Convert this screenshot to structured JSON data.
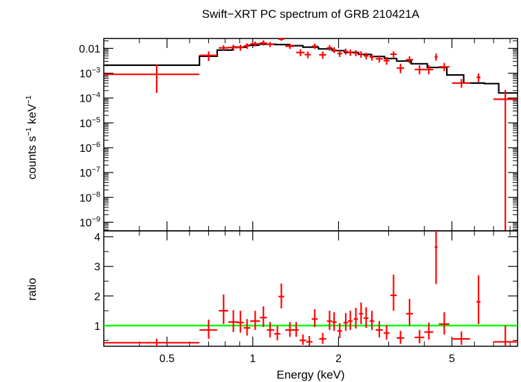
{
  "chart_data": {
    "type": "scatter",
    "title": "Swift−XRT PC spectrum of GRB 210421A",
    "xlabel": "Energy (keV)",
    "x_scale": "log",
    "xlim": [
      0.3,
      8.5
    ],
    "x_ticks": [
      {
        "v": 0.5,
        "label": "0.5"
      },
      {
        "v": 1,
        "label": "1"
      },
      {
        "v": 2,
        "label": "2"
      },
      {
        "v": 5,
        "label": "5"
      }
    ],
    "panels": [
      {
        "name": "spectrum",
        "ylabel_main": "counts s",
        "ylabel_sup1": "−1",
        "ylabel_mid": " keV",
        "ylabel_sup2": "−1",
        "y_scale": "log",
        "ylim": [
          4.5e-10,
          0.025
        ],
        "y_ticks": [
          {
            "v": 0.01,
            "base": "0.01",
            "exp": ""
          },
          {
            "v": 0.001,
            "base": "10",
            "exp": "−3"
          },
          {
            "v": 0.0001,
            "base": "10",
            "exp": "−4"
          },
          {
            "v": 1e-05,
            "base": "10",
            "exp": "−5"
          },
          {
            "v": 1e-06,
            "base": "10",
            "exp": "−6"
          },
          {
            "v": 1e-07,
            "base": "10",
            "exp": "−7"
          },
          {
            "v": 1e-08,
            "base": "10",
            "exp": "−8"
          },
          {
            "v": 1e-09,
            "base": "10",
            "exp": "−9"
          }
        ],
        "model": {
          "color": "#000000",
          "steps": [
            {
              "x0": 0.3,
              "x1": 0.65,
              "y": 0.0021
            },
            {
              "x0": 0.65,
              "x1": 0.75,
              "y": 0.0048
            },
            {
              "x0": 0.75,
              "x1": 0.85,
              "y": 0.0085
            },
            {
              "x0": 0.85,
              "x1": 0.95,
              "y": 0.0112
            },
            {
              "x0": 0.95,
              "x1": 1.05,
              "y": 0.0133
            },
            {
              "x0": 1.05,
              "x1": 1.2,
              "y": 0.0147
            },
            {
              "x0": 1.2,
              "x1": 1.35,
              "y": 0.0142
            },
            {
              "x0": 1.35,
              "x1": 1.5,
              "y": 0.0128
            },
            {
              "x0": 1.5,
              "x1": 1.7,
              "y": 0.0112
            },
            {
              "x0": 1.7,
              "x1": 1.9,
              "y": 0.0095
            },
            {
              "x0": 1.9,
              "x1": 2.1,
              "y": 0.0081
            },
            {
              "x0": 2.1,
              "x1": 2.35,
              "y": 0.0068
            },
            {
              "x0": 2.35,
              "x1": 2.6,
              "y": 0.0057
            },
            {
              "x0": 2.6,
              "x1": 2.9,
              "y": 0.0047
            },
            {
              "x0": 2.9,
              "x1": 3.2,
              "y": 0.0039
            },
            {
              "x0": 3.2,
              "x1": 3.6,
              "y": 0.0031
            },
            {
              "x0": 3.6,
              "x1": 4.1,
              "y": 0.0024
            },
            {
              "x0": 4.1,
              "x1": 4.8,
              "y": 0.0017
            },
            {
              "x0": 4.8,
              "x1": 5.5,
              "y": 0.00085
            },
            {
              "x0": 5.5,
              "x1": 6.5,
              "y": 0.0004
            },
            {
              "x0": 6.5,
              "x1": 7.3,
              "y": 0.00038
            },
            {
              "x0": 7.3,
              "x1": 8.5,
              "y": 0.00016
            }
          ]
        },
        "series": [
          {
            "color": "#ff0000",
            "points": [
              {
                "x": 0.46,
                "xlo": 0.3,
                "xhi": 0.65,
                "y": 0.0009,
                "ylo": 0.00016,
                "yhi": 0.0022
              },
              {
                "x": 0.7,
                "xlo": 0.65,
                "xhi": 0.75,
                "y": 0.0052,
                "ylo": 0.0031,
                "yhi": 0.0075
              },
              {
                "x": 0.79,
                "xlo": 0.76,
                "xhi": 0.82,
                "y": 0.0105,
                "ylo": 0.0078,
                "yhi": 0.0135
              },
              {
                "x": 0.855,
                "xlo": 0.82,
                "xhi": 0.89,
                "y": 0.0108,
                "ylo": 0.008,
                "yhi": 0.014
              },
              {
                "x": 0.905,
                "xlo": 0.88,
                "xhi": 0.93,
                "y": 0.0108,
                "ylo": 0.008,
                "yhi": 0.014
              },
              {
                "x": 0.955,
                "xlo": 0.93,
                "xhi": 0.98,
                "y": 0.0125,
                "ylo": 0.0095,
                "yhi": 0.016
              },
              {
                "x": 1.02,
                "xlo": 0.98,
                "xhi": 1.06,
                "y": 0.0152,
                "ylo": 0.012,
                "yhi": 0.019
              },
              {
                "x": 1.09,
                "xlo": 1.06,
                "xhi": 1.12,
                "y": 0.0165,
                "ylo": 0.013,
                "yhi": 0.021
              },
              {
                "x": 1.15,
                "xlo": 1.12,
                "xhi": 1.19,
                "y": 0.0145,
                "ylo": 0.0112,
                "yhi": 0.018
              },
              {
                "x": 1.26,
                "xlo": 1.23,
                "xhi": 1.29,
                "y": 0.0235,
                "ylo": 0.02,
                "yhi": 0.0275
              },
              {
                "x": 1.35,
                "xlo": 1.3,
                "xhi": 1.4,
                "y": 0.0122,
                "ylo": 0.0095,
                "yhi": 0.0155
              },
              {
                "x": 1.47,
                "xlo": 1.42,
                "xhi": 1.52,
                "y": 0.0068,
                "ylo": 0.0048,
                "yhi": 0.0092
              },
              {
                "x": 1.56,
                "xlo": 1.52,
                "xhi": 1.6,
                "y": 0.0056,
                "ylo": 0.004,
                "yhi": 0.0075
              },
              {
                "x": 1.65,
                "xlo": 1.61,
                "xhi": 1.69,
                "y": 0.0122,
                "ylo": 0.0095,
                "yhi": 0.0155
              },
              {
                "x": 1.76,
                "xlo": 1.71,
                "xhi": 1.81,
                "y": 0.0055,
                "ylo": 0.0038,
                "yhi": 0.0075
              },
              {
                "x": 1.86,
                "xlo": 1.82,
                "xhi": 1.9,
                "y": 0.0105,
                "ylo": 0.008,
                "yhi": 0.0135
              },
              {
                "x": 1.93,
                "xlo": 1.9,
                "xhi": 1.97,
                "y": 0.0085,
                "ylo": 0.0065,
                "yhi": 0.011
              },
              {
                "x": 2.02,
                "xlo": 1.98,
                "xhi": 2.06,
                "y": 0.0062,
                "ylo": 0.0045,
                "yhi": 0.0082
              },
              {
                "x": 2.12,
                "xlo": 2.08,
                "xhi": 2.16,
                "y": 0.0075,
                "ylo": 0.0056,
                "yhi": 0.0098
              },
              {
                "x": 2.2,
                "xlo": 2.16,
                "xhi": 2.24,
                "y": 0.0068,
                "ylo": 0.005,
                "yhi": 0.009
              },
              {
                "x": 2.3,
                "xlo": 2.26,
                "xhi": 2.34,
                "y": 0.0065,
                "ylo": 0.0048,
                "yhi": 0.0085
              },
              {
                "x": 2.4,
                "xlo": 2.36,
                "xhi": 2.44,
                "y": 0.0058,
                "ylo": 0.0042,
                "yhi": 0.0077
              },
              {
                "x": 2.5,
                "xlo": 2.45,
                "xhi": 2.55,
                "y": 0.005,
                "ylo": 0.0036,
                "yhi": 0.0067
              },
              {
                "x": 2.62,
                "xlo": 2.57,
                "xhi": 2.67,
                "y": 0.0045,
                "ylo": 0.0032,
                "yhi": 0.006
              },
              {
                "x": 2.78,
                "xlo": 2.7,
                "xhi": 2.86,
                "y": 0.0038,
                "ylo": 0.0027,
                "yhi": 0.0052
              },
              {
                "x": 2.95,
                "xlo": 2.88,
                "xhi": 3.02,
                "y": 0.0032,
                "ylo": 0.0022,
                "yhi": 0.0045
              },
              {
                "x": 3.12,
                "xlo": 3.04,
                "xhi": 3.2,
                "y": 0.0058,
                "ylo": 0.0043,
                "yhi": 0.0076
              },
              {
                "x": 3.3,
                "xlo": 3.2,
                "xhi": 3.4,
                "y": 0.0016,
                "ylo": 0.001,
                "yhi": 0.0024
              },
              {
                "x": 3.55,
                "xlo": 3.45,
                "xhi": 3.65,
                "y": 0.0035,
                "ylo": 0.0025,
                "yhi": 0.0048
              },
              {
                "x": 3.85,
                "xlo": 3.7,
                "xhi": 4.0,
                "y": 0.0014,
                "ylo": 0.0009,
                "yhi": 0.0021
              },
              {
                "x": 4.15,
                "xlo": 4.0,
                "xhi": 4.3,
                "y": 0.0014,
                "ylo": 0.0009,
                "yhi": 0.0021
              },
              {
                "x": 4.4,
                "xlo": 4.35,
                "xhi": 4.45,
                "y": 0.0045,
                "ylo": 0.0032,
                "yhi": 0.0062
              },
              {
                "x": 4.7,
                "xlo": 4.5,
                "xhi": 4.9,
                "y": 0.0018,
                "ylo": 0.0012,
                "yhi": 0.0026
              },
              {
                "x": 5.4,
                "xlo": 5.0,
                "xhi": 5.8,
                "y": 0.0004,
                "ylo": 0.00026,
                "yhi": 0.00058
              },
              {
                "x": 6.2,
                "xlo": 6.1,
                "xhi": 6.3,
                "y": 0.00068,
                "ylo": 0.00044,
                "yhi": 0.00098
              },
              {
                "x": 7.7,
                "xlo": 7.0,
                "xhi": 8.5,
                "y": 9e-05,
                "ylo": 4.5e-10,
                "yhi": 0.00021
              }
            ]
          }
        ]
      },
      {
        "name": "ratio",
        "ylabel": "ratio",
        "y_scale": "linear",
        "ylim": [
          0.3,
          4.2
        ],
        "y_ticks": [
          {
            "v": 1,
            "label": "1"
          },
          {
            "v": 2,
            "label": "2"
          },
          {
            "v": 3,
            "label": "3"
          },
          {
            "v": 4,
            "label": "4"
          }
        ],
        "reference_line": {
          "y": 1,
          "color": "#00ff00"
        },
        "series": [
          {
            "color": "#ff0000",
            "points": [
              {
                "x": 0.46,
                "xlo": 0.3,
                "xhi": 0.65,
                "y": 0.42,
                "ylo": 0.3,
                "yhi": 0.55
              },
              {
                "x": 0.7,
                "xlo": 0.65,
                "xhi": 0.75,
                "y": 0.85,
                "ylo": 0.55,
                "yhi": 1.2
              },
              {
                "x": 0.79,
                "xlo": 0.76,
                "xhi": 0.82,
                "y": 1.5,
                "ylo": 1.05,
                "yhi": 2.05
              },
              {
                "x": 0.855,
                "xlo": 0.82,
                "xhi": 0.89,
                "y": 1.12,
                "ylo": 0.78,
                "yhi": 1.52
              },
              {
                "x": 0.905,
                "xlo": 0.88,
                "xhi": 0.93,
                "y": 1.1,
                "ylo": 0.76,
                "yhi": 1.5
              },
              {
                "x": 0.955,
                "xlo": 0.93,
                "xhi": 0.98,
                "y": 0.92,
                "ylo": 0.66,
                "yhi": 1.22
              },
              {
                "x": 1.02,
                "xlo": 0.98,
                "xhi": 1.06,
                "y": 1.15,
                "ylo": 0.85,
                "yhi": 1.5
              },
              {
                "x": 1.09,
                "xlo": 1.06,
                "xhi": 1.12,
                "y": 1.27,
                "ylo": 0.95,
                "yhi": 1.65
              },
              {
                "x": 1.15,
                "xlo": 1.12,
                "xhi": 1.19,
                "y": 0.85,
                "ylo": 0.6,
                "yhi": 1.12
              },
              {
                "x": 1.22,
                "xlo": 1.19,
                "xhi": 1.25,
                "y": 0.72,
                "ylo": 0.5,
                "yhi": 0.98
              },
              {
                "x": 1.26,
                "xlo": 1.23,
                "xhi": 1.29,
                "y": 1.98,
                "ylo": 1.58,
                "yhi": 2.42
              },
              {
                "x": 1.35,
                "xlo": 1.3,
                "xhi": 1.4,
                "y": 0.85,
                "ylo": 0.62,
                "yhi": 1.12
              },
              {
                "x": 1.42,
                "xlo": 1.39,
                "xhi": 1.45,
                "y": 0.85,
                "ylo": 0.62,
                "yhi": 1.12
              },
              {
                "x": 1.5,
                "xlo": 1.46,
                "xhi": 1.54,
                "y": 0.5,
                "ylo": 0.35,
                "yhi": 0.7
              },
              {
                "x": 1.58,
                "xlo": 1.54,
                "xhi": 1.62,
                "y": 0.45,
                "ylo": 0.32,
                "yhi": 0.65
              },
              {
                "x": 1.65,
                "xlo": 1.61,
                "xhi": 1.69,
                "y": 1.22,
                "ylo": 0.95,
                "yhi": 1.55
              },
              {
                "x": 1.76,
                "xlo": 1.71,
                "xhi": 1.81,
                "y": 0.55,
                "ylo": 0.38,
                "yhi": 0.75
              },
              {
                "x": 1.86,
                "xlo": 1.82,
                "xhi": 1.9,
                "y": 1.15,
                "ylo": 0.85,
                "yhi": 1.5
              },
              {
                "x": 1.93,
                "xlo": 1.9,
                "xhi": 1.97,
                "y": 1.12,
                "ylo": 0.82,
                "yhi": 1.45
              },
              {
                "x": 2.02,
                "xlo": 1.98,
                "xhi": 2.06,
                "y": 0.82,
                "ylo": 0.58,
                "yhi": 1.08
              },
              {
                "x": 2.12,
                "xlo": 2.08,
                "xhi": 2.16,
                "y": 1.1,
                "ylo": 0.82,
                "yhi": 1.42
              },
              {
                "x": 2.2,
                "xlo": 2.16,
                "xhi": 2.24,
                "y": 1.15,
                "ylo": 0.85,
                "yhi": 1.5
              },
              {
                "x": 2.3,
                "xlo": 2.26,
                "xhi": 2.34,
                "y": 1.22,
                "ylo": 0.9,
                "yhi": 1.6
              },
              {
                "x": 2.4,
                "xlo": 2.36,
                "xhi": 2.44,
                "y": 1.4,
                "ylo": 1.05,
                "yhi": 1.78
              },
              {
                "x": 2.5,
                "xlo": 2.45,
                "xhi": 2.55,
                "y": 1.25,
                "ylo": 0.92,
                "yhi": 1.62
              },
              {
                "x": 2.62,
                "xlo": 2.57,
                "xhi": 2.67,
                "y": 1.15,
                "ylo": 0.85,
                "yhi": 1.5
              },
              {
                "x": 2.78,
                "xlo": 2.7,
                "xhi": 2.86,
                "y": 0.85,
                "ylo": 0.6,
                "yhi": 1.15
              },
              {
                "x": 2.95,
                "xlo": 2.88,
                "xhi": 3.02,
                "y": 0.75,
                "ylo": 0.52,
                "yhi": 1.02
              },
              {
                "x": 3.12,
                "xlo": 3.04,
                "xhi": 3.2,
                "y": 2.02,
                "ylo": 1.5,
                "yhi": 2.72
              },
              {
                "x": 3.3,
                "xlo": 3.2,
                "xhi": 3.4,
                "y": 0.58,
                "ylo": 0.38,
                "yhi": 0.82
              },
              {
                "x": 3.55,
                "xlo": 3.45,
                "xhi": 3.65,
                "y": 1.4,
                "ylo": 1.0,
                "yhi": 1.9
              },
              {
                "x": 3.85,
                "xlo": 3.7,
                "xhi": 4.0,
                "y": 0.6,
                "ylo": 0.4,
                "yhi": 0.85
              },
              {
                "x": 4.15,
                "xlo": 4.0,
                "xhi": 4.3,
                "y": 0.78,
                "ylo": 0.52,
                "yhi": 1.1
              },
              {
                "x": 4.4,
                "xlo": 4.35,
                "xhi": 4.45,
                "y": 3.65,
                "ylo": 2.4,
                "yhi": 4.2
              },
              {
                "x": 4.7,
                "xlo": 4.5,
                "xhi": 4.9,
                "y": 1.05,
                "ylo": 0.7,
                "yhi": 1.45
              },
              {
                "x": 5.4,
                "xlo": 5.0,
                "xhi": 5.8,
                "y": 0.55,
                "ylo": 0.35,
                "yhi": 0.8
              },
              {
                "x": 6.2,
                "xlo": 6.1,
                "xhi": 6.3,
                "y": 1.8,
                "ylo": 1.05,
                "yhi": 2.7
              },
              {
                "x": 7.7,
                "xlo": 7.0,
                "xhi": 8.5,
                "y": 0.45,
                "ylo": 0.3,
                "yhi": 1.0
              }
            ]
          }
        ]
      }
    ]
  }
}
